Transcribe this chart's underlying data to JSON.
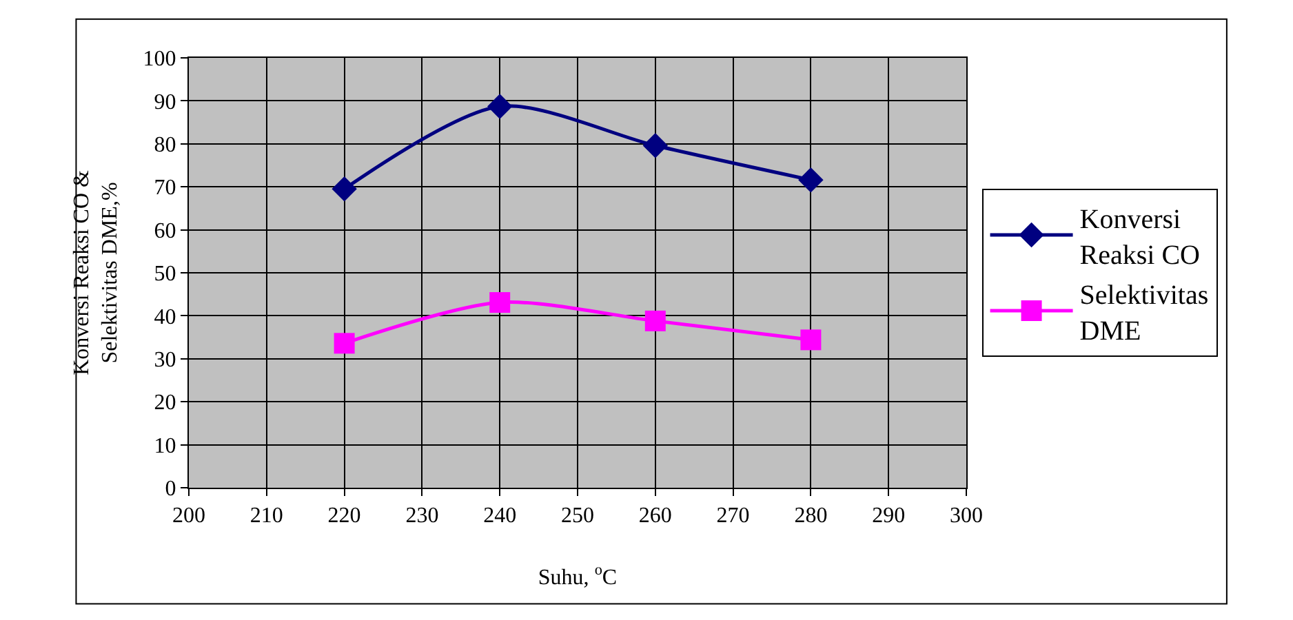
{
  "chart_data": {
    "type": "line",
    "xlabel": "Suhu, $^{o}$C",
    "ylabel": "Konversi Reaksi CO & Selektivitas DME,%",
    "x": [
      220,
      240,
      260,
      280
    ],
    "series": [
      {
        "name": "Konversi Reaksi CO",
        "color": "#000080",
        "marker": "diamond",
        "values": [
          69.5,
          88.7,
          79.6,
          71.6
        ]
      },
      {
        "name": "Selektivitas DME",
        "color": "#ff00ff",
        "marker": "square",
        "values": [
          33.6,
          43.1,
          38.8,
          34.4
        ]
      }
    ],
    "xlim": [
      200,
      300
    ],
    "xticks": [
      200,
      210,
      220,
      230,
      240,
      250,
      260,
      270,
      280,
      290,
      300
    ],
    "ylim": [
      0,
      100
    ],
    "yticks": [
      0,
      10,
      20,
      30,
      40,
      50,
      60,
      70,
      80,
      90,
      100
    ],
    "grid": true,
    "legend": "right",
    "line_style": "solid"
  }
}
